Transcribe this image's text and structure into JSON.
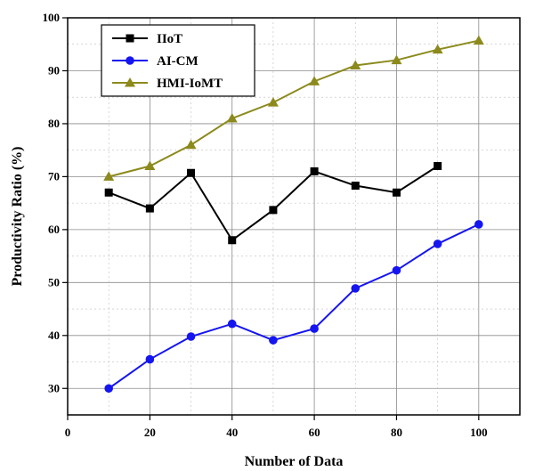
{
  "chart_data": {
    "type": "line",
    "xlabel": "Number of Data",
    "ylabel": "Productivity Ratio (%)",
    "xlim": [
      0,
      110
    ],
    "ylim": [
      25,
      100
    ],
    "x_ticks": [
      "0",
      "20",
      "40",
      "60",
      "80",
      "100"
    ],
    "y_ticks": [
      "30",
      "40",
      "50",
      "60",
      "70",
      "80",
      "90",
      "100"
    ],
    "grid": true,
    "legend_position": "top-left",
    "series": [
      {
        "name": "IIoT",
        "color": "#000000",
        "marker": "square",
        "x": [
          10,
          20,
          30,
          40,
          50,
          60,
          70,
          80,
          90
        ],
        "y": [
          67,
          64,
          70.7,
          58,
          63.7,
          71,
          68.3,
          67,
          72
        ]
      },
      {
        "name": "AI-CM",
        "color": "#1515f0",
        "marker": "circle",
        "x": [
          10,
          20,
          30,
          40,
          50,
          60,
          70,
          80,
          90,
          100
        ],
        "y": [
          30,
          35.5,
          39.8,
          42.2,
          39.1,
          41.3,
          48.9,
          52.3,
          57.3,
          61
        ]
      },
      {
        "name": "HMI-IoMT",
        "color": "#8c8a1c",
        "marker": "triangle",
        "x": [
          10,
          20,
          30,
          40,
          50,
          60,
          70,
          80,
          90,
          100
        ],
        "y": [
          70,
          72,
          76,
          81,
          84,
          88,
          91,
          92,
          94,
          95.7
        ]
      }
    ]
  }
}
